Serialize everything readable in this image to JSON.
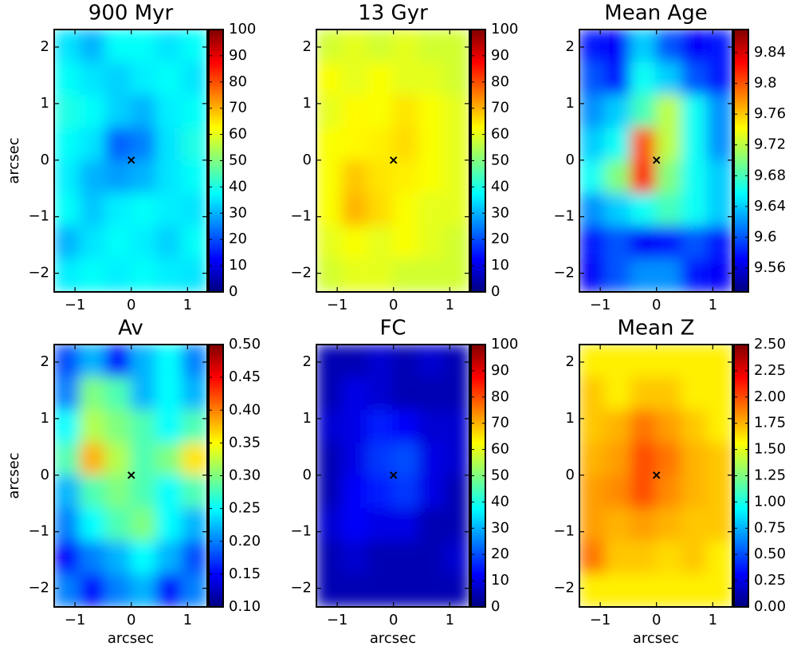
{
  "chart_data": [
    {
      "type": "heatmap",
      "title": "900 Myr",
      "ylabel": "arcsec",
      "colormap": "jet",
      "xlim": [
        -1.37,
        1.35
      ],
      "ylim": [
        -2.33,
        2.31
      ],
      "xticks": [
        {
          "value": -1,
          "label": "−1"
        },
        0,
        1
      ],
      "yticks": [
        {
          "value": -2,
          "label": "−2"
        },
        {
          "value": -1,
          "label": "−1"
        },
        0,
        1,
        2
      ],
      "clim": [
        0,
        100
      ],
      "cticks": [
        0,
        10,
        20,
        30,
        40,
        50,
        60,
        70,
        80,
        90,
        100
      ],
      "marker": {
        "x": 0,
        "y": 0
      },
      "z": [
        [
          35,
          30,
          38,
          38,
          35,
          38
        ],
        [
          38,
          35,
          33,
          36,
          38,
          35
        ],
        [
          40,
          38,
          33,
          30,
          36,
          38
        ],
        [
          38,
          35,
          22,
          25,
          35,
          40
        ],
        [
          36,
          30,
          28,
          30,
          35,
          38
        ],
        [
          38,
          32,
          36,
          38,
          36,
          35
        ],
        [
          30,
          35,
          38,
          36,
          33,
          38
        ],
        [
          36,
          38,
          36,
          38,
          36,
          35
        ]
      ]
    },
    {
      "type": "heatmap",
      "title": "13 Gyr",
      "colormap": "jet",
      "xlim": [
        -1.37,
        1.35
      ],
      "ylim": [
        -2.33,
        2.31
      ],
      "xticks": [
        {
          "value": -1,
          "label": "−1"
        },
        0,
        1
      ],
      "yticks": [
        {
          "value": -2,
          "label": "−2"
        },
        {
          "value": -1,
          "label": "−1"
        },
        0,
        1,
        2
      ],
      "clim": [
        0,
        100
      ],
      "cticks": [
        0,
        10,
        20,
        30,
        40,
        50,
        60,
        70,
        80,
        90,
        100
      ],
      "marker": {
        "x": 0,
        "y": 0
      },
      "z": [
        [
          58,
          60,
          58,
          60,
          58,
          58
        ],
        [
          62,
          60,
          62,
          60,
          60,
          58
        ],
        [
          60,
          63,
          62,
          65,
          62,
          60
        ],
        [
          62,
          63,
          64,
          66,
          62,
          60
        ],
        [
          62,
          68,
          65,
          64,
          62,
          60
        ],
        [
          62,
          70,
          66,
          62,
          60,
          60
        ],
        [
          60,
          62,
          60,
          62,
          60,
          58
        ],
        [
          58,
          60,
          60,
          58,
          58,
          58
        ]
      ]
    },
    {
      "type": "heatmap",
      "title": "Mean Age",
      "colormap": "jet",
      "xlim": [
        -1.37,
        1.35
      ],
      "ylim": [
        -2.33,
        2.31
      ],
      "xticks": [
        {
          "value": -1,
          "label": "−1"
        },
        0,
        1
      ],
      "yticks": [
        {
          "value": -2,
          "label": "−2"
        },
        {
          "value": -1,
          "label": "−1"
        },
        0,
        1,
        2
      ],
      "clim": [
        9.529,
        9.87
      ],
      "cticks": [
        9.56,
        9.6,
        9.64,
        9.68,
        9.72,
        9.76,
        9.8,
        9.84
      ],
      "marker": {
        "x": 0,
        "y": 0
      },
      "z": [
        [
          9.58,
          9.57,
          9.64,
          9.6,
          9.57,
          9.58
        ],
        [
          9.6,
          9.58,
          9.66,
          9.64,
          9.6,
          9.58
        ],
        [
          9.62,
          9.64,
          9.68,
          9.72,
          9.66,
          9.62
        ],
        [
          9.64,
          9.66,
          9.8,
          9.72,
          9.66,
          9.62
        ],
        [
          9.66,
          9.7,
          9.82,
          9.7,
          9.66,
          9.64
        ],
        [
          9.62,
          9.64,
          9.66,
          9.68,
          9.66,
          9.64
        ],
        [
          9.58,
          9.6,
          9.57,
          9.58,
          9.6,
          9.58
        ],
        [
          9.57,
          9.6,
          9.62,
          9.62,
          9.58,
          9.57
        ]
      ]
    },
    {
      "type": "heatmap",
      "title": "Av",
      "xlabel": "arcsec",
      "ylabel": "arcsec",
      "colormap": "jet",
      "xlim": [
        -1.37,
        1.35
      ],
      "ylim": [
        -2.33,
        2.31
      ],
      "xticks": [
        {
          "value": -1,
          "label": "−1"
        },
        0,
        1
      ],
      "yticks": [
        {
          "value": -2,
          "label": "−2"
        },
        {
          "value": -1,
          "label": "−1"
        },
        0,
        1,
        2
      ],
      "clim": [
        0.1,
        0.5
      ],
      "cticks": [
        {
          "value": 0.1,
          "label": "0.10"
        },
        0.15,
        {
          "value": 0.2,
          "label": "0.20"
        },
        0.25,
        {
          "value": 0.3,
          "label": "0.30"
        },
        0.35,
        {
          "value": 0.4,
          "label": "0.40"
        },
        0.45,
        {
          "value": 0.5,
          "label": "0.50"
        }
      ],
      "marker": {
        "x": 0,
        "y": 0
      },
      "z": [
        [
          0.18,
          0.22,
          0.15,
          0.22,
          0.25,
          0.2
        ],
        [
          0.2,
          0.3,
          0.28,
          0.22,
          0.25,
          0.22
        ],
        [
          0.25,
          0.32,
          0.3,
          0.28,
          0.25,
          0.28
        ],
        [
          0.28,
          0.38,
          0.32,
          0.28,
          0.3,
          0.36
        ],
        [
          0.22,
          0.28,
          0.3,
          0.28,
          0.25,
          0.28
        ],
        [
          0.2,
          0.25,
          0.28,
          0.3,
          0.25,
          0.22
        ],
        [
          0.15,
          0.2,
          0.22,
          0.25,
          0.22,
          0.18
        ],
        [
          0.2,
          0.15,
          0.2,
          0.22,
          0.15,
          0.2
        ]
      ]
    },
    {
      "type": "heatmap",
      "title": "FC",
      "xlabel": "arcsec",
      "colormap": "jet",
      "xlim": [
        -1.37,
        1.35
      ],
      "ylim": [
        -2.33,
        2.31
      ],
      "xticks": [
        {
          "value": -1,
          "label": "−1"
        },
        0,
        1
      ],
      "yticks": [
        {
          "value": -2,
          "label": "−2"
        },
        {
          "value": -1,
          "label": "−1"
        },
        0,
        1,
        2
      ],
      "clim": [
        0,
        100
      ],
      "cticks": [
        0,
        10,
        20,
        30,
        40,
        50,
        60,
        70,
        80,
        90,
        100
      ],
      "marker": {
        "x": 0,
        "y": 0
      },
      "z": [
        [
          5,
          5,
          8,
          5,
          8,
          5
        ],
        [
          5,
          10,
          8,
          5,
          5,
          5
        ],
        [
          8,
          10,
          15,
          12,
          8,
          8
        ],
        [
          5,
          10,
          18,
          20,
          10,
          8
        ],
        [
          5,
          12,
          15,
          18,
          10,
          5
        ],
        [
          8,
          12,
          10,
          10,
          5,
          5
        ],
        [
          5,
          8,
          5,
          5,
          5,
          8
        ],
        [
          5,
          5,
          5,
          5,
          5,
          5
        ]
      ]
    },
    {
      "type": "heatmap",
      "title": "Mean Z",
      "xlabel": "arcsec",
      "colormap": "jet",
      "xlim": [
        -1.37,
        1.35
      ],
      "ylim": [
        -2.33,
        2.31
      ],
      "xticks": [
        {
          "value": -1,
          "label": "−1"
        },
        0,
        1
      ],
      "yticks": [
        {
          "value": -2,
          "label": "−2"
        },
        {
          "value": -1,
          "label": "−1"
        },
        0,
        1,
        2
      ],
      "clim": [
        0,
        2.5
      ],
      "cticks": [
        {
          "value": 0,
          "label": "0.00"
        },
        0.25,
        {
          "value": 0.5,
          "label": "0.50"
        },
        0.75,
        {
          "value": 1,
          "label": "1.00"
        },
        1.25,
        {
          "value": 1.5,
          "label": "1.50"
        },
        1.75,
        {
          "value": 2,
          "label": "2.00"
        },
        2.25,
        {
          "value": 2.5,
          "label": "2.50"
        }
      ],
      "marker": {
        "x": 0,
        "y": 0
      },
      "z": [
        [
          1.6,
          1.6,
          1.6,
          1.6,
          1.6,
          1.6
        ],
        [
          1.7,
          1.6,
          1.7,
          1.7,
          1.6,
          1.6
        ],
        [
          1.7,
          1.75,
          1.9,
          1.8,
          1.7,
          1.6
        ],
        [
          1.75,
          1.8,
          2.0,
          1.9,
          1.75,
          1.7
        ],
        [
          1.8,
          1.85,
          2.0,
          1.85,
          1.75,
          1.7
        ],
        [
          1.8,
          1.75,
          1.8,
          1.75,
          1.7,
          1.7
        ],
        [
          1.9,
          1.7,
          1.7,
          1.65,
          1.7,
          1.6
        ],
        [
          1.6,
          1.6,
          1.6,
          1.6,
          1.6,
          1.6
        ]
      ]
    }
  ]
}
